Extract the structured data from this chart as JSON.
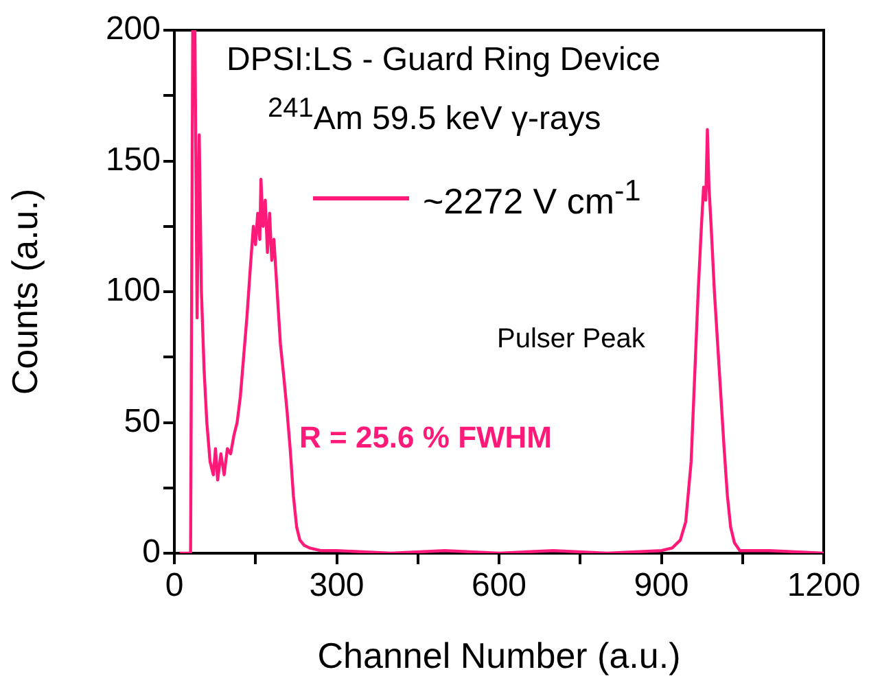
{
  "chart_data": {
    "type": "line",
    "xlabel": "Channel Number (a.u.)",
    "ylabel": "Counts (a.u.)",
    "xlim": [
      0,
      1200
    ],
    "xticks": [
      0,
      {
        "value": 150,
        "label": null
      },
      300,
      {
        "value": 450,
        "label": null
      },
      600,
      {
        "value": 750,
        "label": null
      },
      900,
      {
        "value": 1050,
        "label": null
      },
      1200
    ],
    "ylim": [
      0,
      200
    ],
    "yticks": [
      0,
      {
        "value": 25,
        "label": null
      },
      50,
      {
        "value": 75,
        "label": null
      },
      100,
      {
        "value": 125,
        "label": null
      },
      150,
      {
        "value": 175,
        "label": null
      },
      200
    ],
    "grid": false,
    "legend": "top right",
    "marker": "none",
    "line_style": "solid",
    "annotations": [
      "DPSI:LS - Guard Ring Device",
      "$^{241}$Am 59.5 keV γ-rays",
      "Pulser Peak",
      "R = 25.6 % FWHM"
    ],
    "series": [
      {
        "name": "~2272 V cm$^{-1}$",
        "color": "#ff1a7a",
        "x": [
          10,
          20,
          30,
          34,
          38,
          42,
          46,
          50,
          55,
          60,
          66,
          72,
          76,
          80,
          86,
          92,
          98,
          104,
          110,
          116,
          122,
          128,
          134,
          140,
          146,
          150,
          154,
          158,
          160,
          164,
          168,
          172,
          176,
          180,
          184,
          190,
          196,
          202,
          208,
          214,
          220,
          226,
          232,
          240,
          250,
          270,
          300,
          400,
          500,
          600,
          700,
          800,
          900,
          920,
          935,
          945,
          955,
          962,
          968,
          974,
          978,
          982,
          985,
          988,
          992,
          998,
          1004,
          1010,
          1016,
          1022,
          1028,
          1035,
          1045,
          1100,
          1200
        ],
        "values": [
          0,
          0,
          0,
          200,
          200,
          90,
          160,
          100,
          70,
          50,
          35,
          30,
          40,
          28,
          38,
          30,
          40,
          38,
          45,
          50,
          60,
          75,
          90,
          108,
          125,
          118,
          130,
          120,
          143,
          125,
          135,
          115,
          130,
          112,
          120,
          100,
          80,
          68,
          55,
          40,
          22,
          10,
          5,
          3,
          2,
          1,
          1,
          0,
          1,
          0,
          1,
          0,
          1,
          2,
          5,
          12,
          35,
          70,
          100,
          125,
          140,
          135,
          162,
          140,
          125,
          100,
          80,
          60,
          40,
          22,
          10,
          4,
          1,
          1,
          0
        ]
      }
    ]
  }
}
